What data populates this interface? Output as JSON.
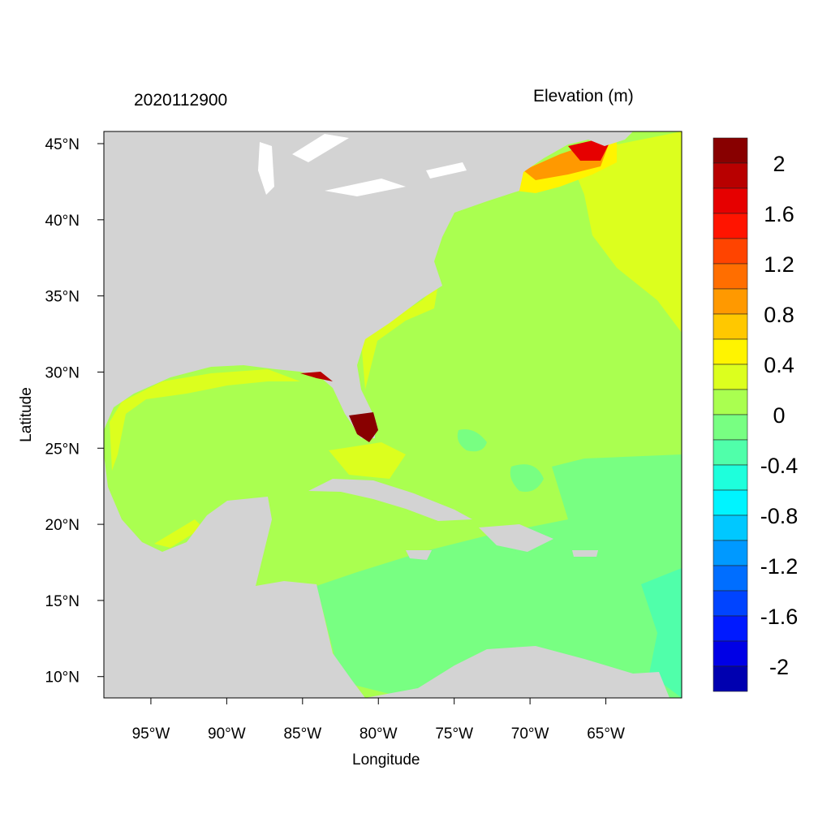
{
  "chart_data": {
    "type": "heatmap",
    "title": "2020112900",
    "colorbar_title": "Elevation (m)",
    "xlabel": "Longitude",
    "ylabel": "Latitude",
    "xlim": [
      -98.1,
      -60.0
    ],
    "ylim": [
      8.6,
      45.8
    ],
    "x_ticks": [
      {
        "value": -95,
        "label": "95°W"
      },
      {
        "value": -90,
        "label": "90°W"
      },
      {
        "value": -85,
        "label": "85°W"
      },
      {
        "value": -80,
        "label": "80°W"
      },
      {
        "value": -75,
        "label": "75°W"
      },
      {
        "value": -70,
        "label": "70°W"
      },
      {
        "value": -65,
        "label": "65°W"
      }
    ],
    "y_ticks": [
      {
        "value": 45,
        "label": "45°N"
      },
      {
        "value": 40,
        "label": "40°N"
      },
      {
        "value": 35,
        "label": "35°N"
      },
      {
        "value": 30,
        "label": "30°N"
      },
      {
        "value": 25,
        "label": "25°N"
      },
      {
        "value": 20,
        "label": "20°N"
      },
      {
        "value": 15,
        "label": "15°N"
      },
      {
        "value": 10,
        "label": "10°N"
      }
    ],
    "colorbar": {
      "range": [
        -2.2,
        2.2
      ],
      "step": 0.2,
      "colors": [
        "#880000",
        "#b80000",
        "#e60000",
        "#ff1400",
        "#ff4400",
        "#ff6e00",
        "#ff9900",
        "#ffc800",
        "#fff400",
        "#dcff1e",
        "#aaff50",
        "#78ff82",
        "#50ffaa",
        "#1effdc",
        "#00f4ff",
        "#00c8ff",
        "#0099ff",
        "#006eff",
        "#0044ff",
        "#001aff",
        "#0000e6",
        "#0000b0"
      ],
      "labels": [
        {
          "value": 2,
          "label": "2"
        },
        {
          "value": 1.6,
          "label": "1.6"
        },
        {
          "value": 1.2,
          "label": "1.2"
        },
        {
          "value": 0.8,
          "label": "0.8"
        },
        {
          "value": 0.4,
          "label": "0.4"
        },
        {
          "value": 0,
          "label": "0"
        },
        {
          "value": -0.4,
          "label": "-0.4"
        },
        {
          "value": -0.8,
          "label": "-0.8"
        },
        {
          "value": -1.2,
          "label": "-1.2"
        },
        {
          "value": -1.6,
          "label": "-1.6"
        },
        {
          "value": -2,
          "label": "-2"
        }
      ]
    },
    "land_color": "#d3d3d3"
  }
}
